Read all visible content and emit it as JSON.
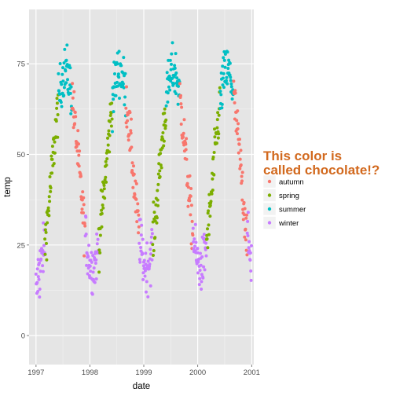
{
  "chart_data": {
    "type": "scatter",
    "xlabel": "date",
    "ylabel": "temp",
    "xlim": [
      "1996-11-15",
      "2001-01-15"
    ],
    "ylim": [
      -8,
      90
    ],
    "x_ticks": [
      "1997",
      "1998",
      "1999",
      "2000",
      "2001"
    ],
    "y_ticks": [
      0,
      25,
      50,
      75
    ],
    "grid": true,
    "legend": {
      "title_lines": [
        "This color is",
        "called chocolate!?"
      ],
      "title_color": "#D2691E",
      "placement": "right"
    },
    "series": [
      {
        "name": "autumn",
        "color": "#F8766D"
      },
      {
        "name": "spring",
        "color": "#7CAE00"
      },
      {
        "name": "summer",
        "color": "#00BFC4"
      },
      {
        "name": "winter",
        "color": "#C77CFF"
      }
    ]
  }
}
